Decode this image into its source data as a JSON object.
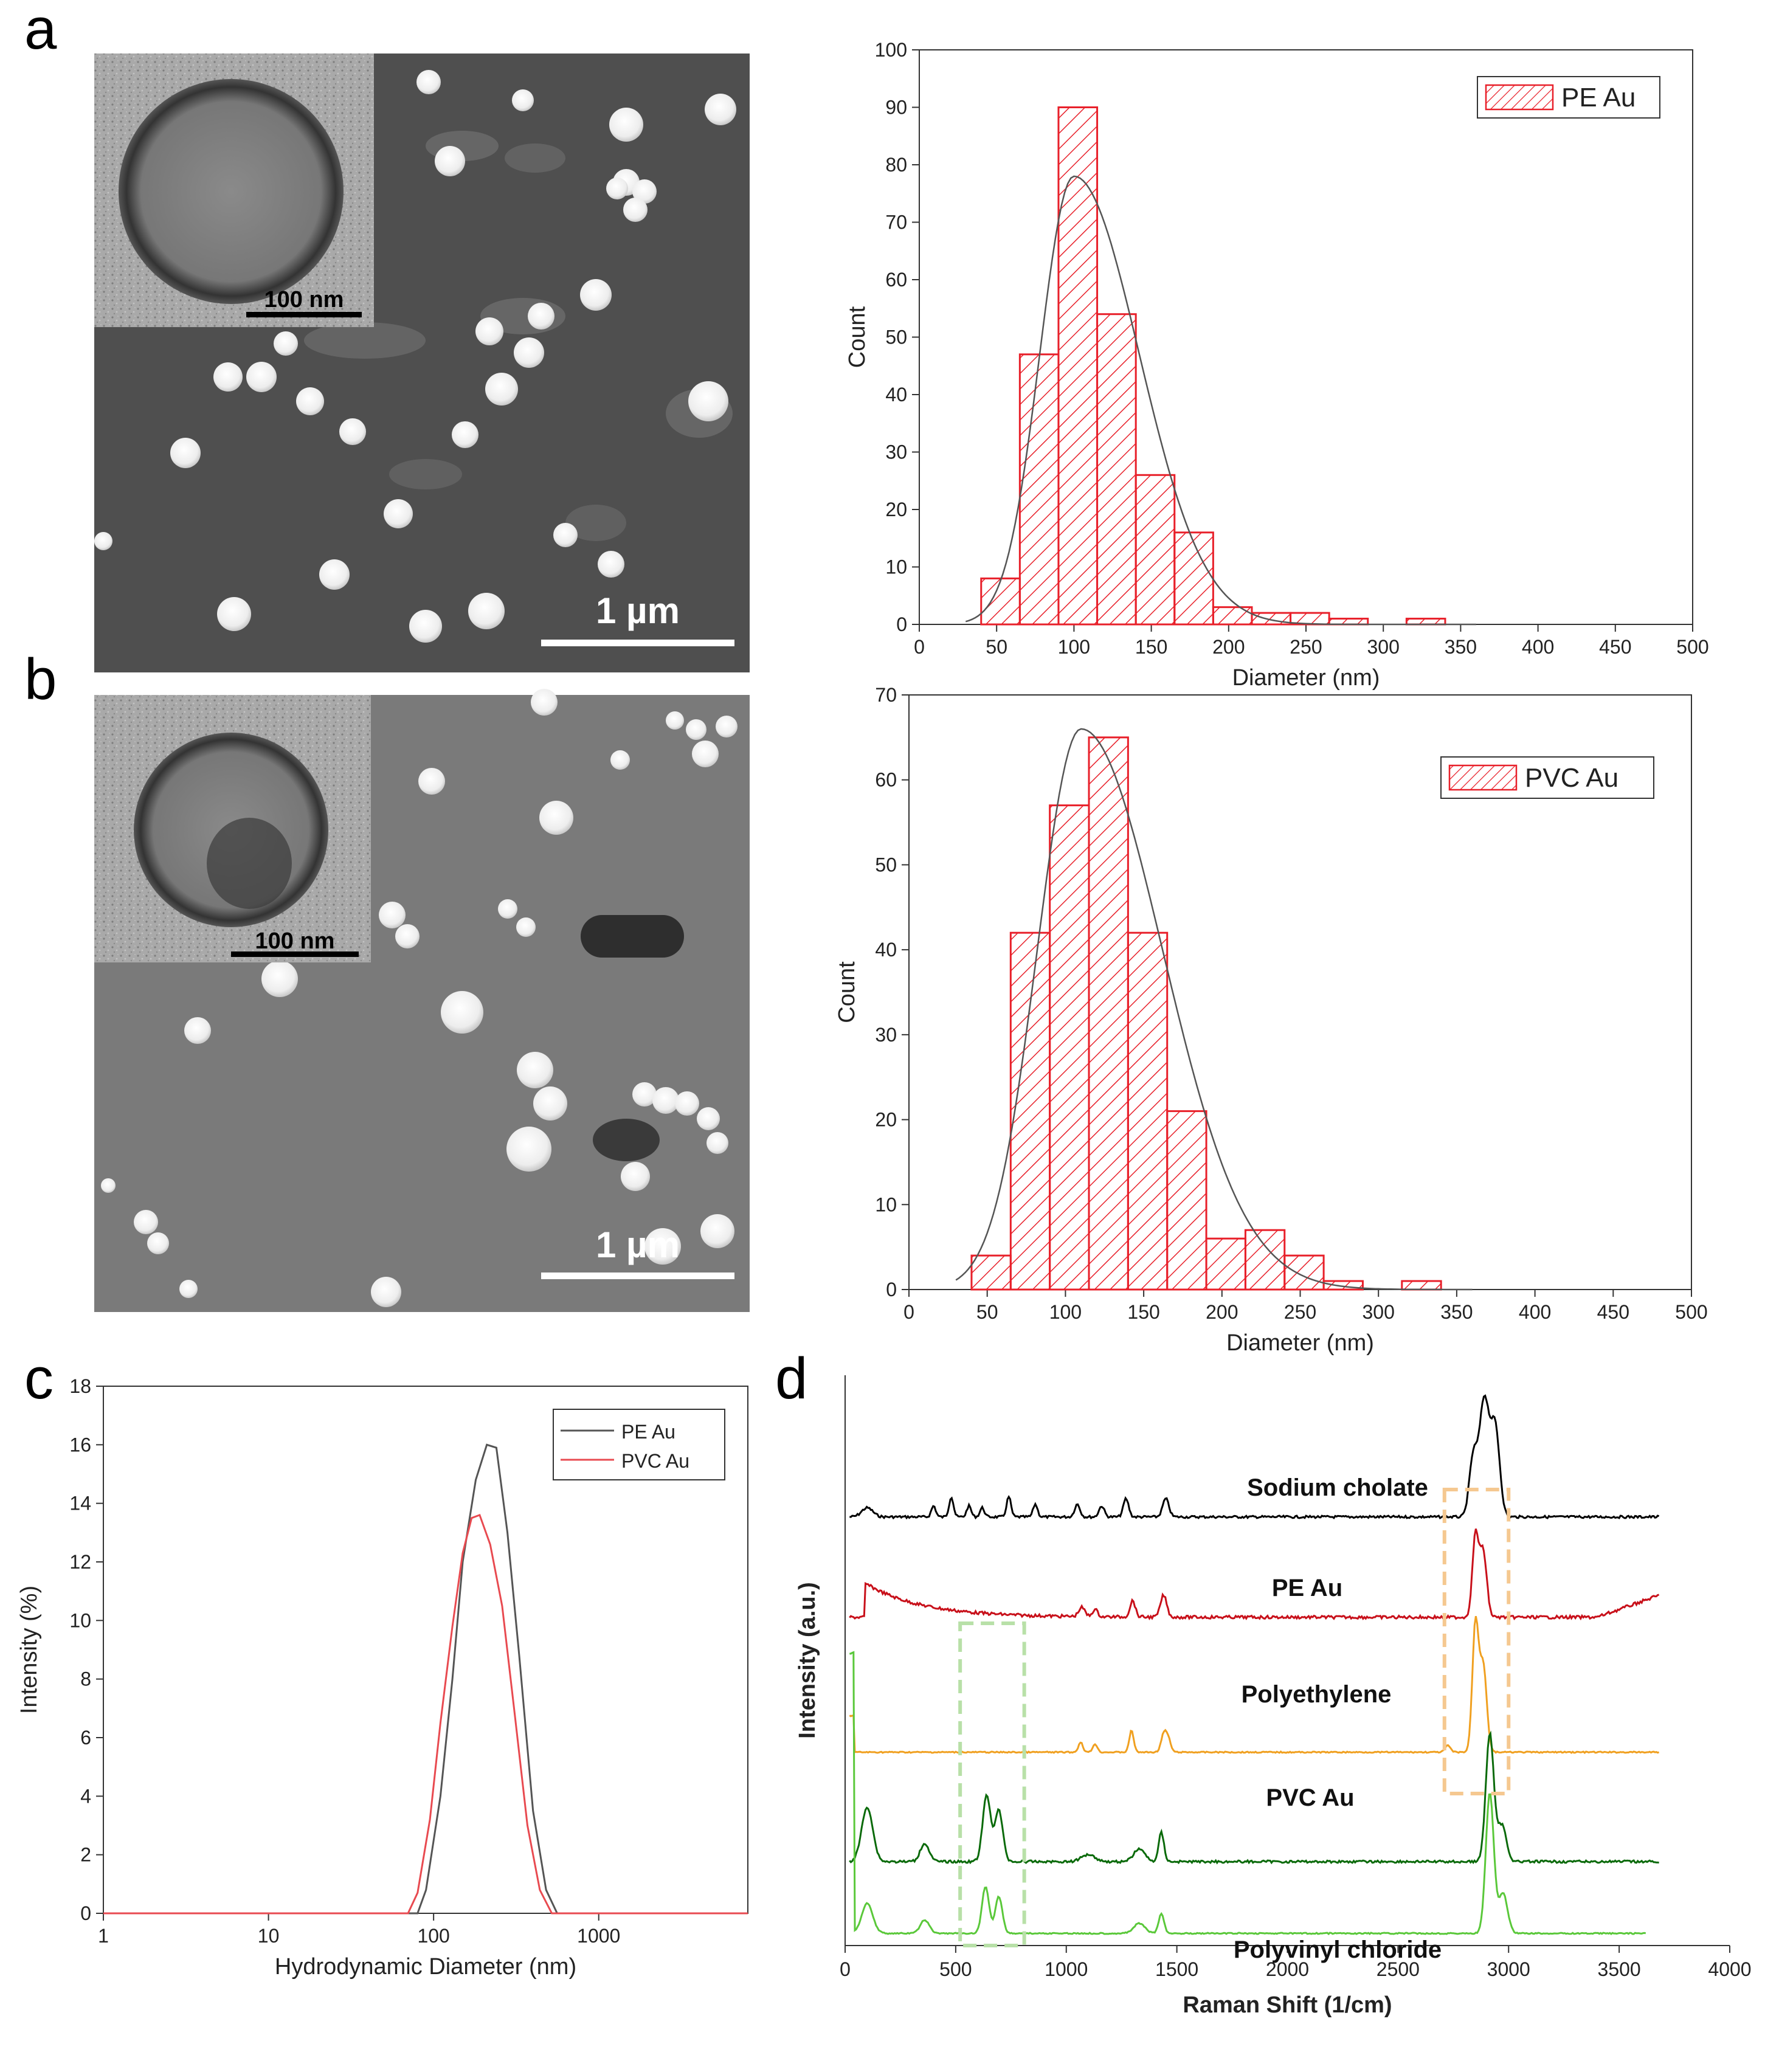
{
  "panel_letters": {
    "a": "a",
    "b": "b",
    "c": "c",
    "d": "d"
  },
  "micrographs": {
    "a": {
      "inset_scale": "100 nm",
      "main_scale": "1 µm"
    },
    "b": {
      "inset_scale": "100 nm",
      "main_scale": "1 µm"
    }
  },
  "colors": {
    "bar_edge": "#e8202a",
    "fit": "#555555",
    "black": "#000000",
    "red": "#c8101a",
    "orange": "#f0a020",
    "dark_green": "#0a6a0a",
    "light_green": "#5ac83a"
  },
  "chart_data": [
    {
      "id": "a",
      "type": "bar",
      "title": "",
      "xlabel": "Diameter (nm)",
      "ylabel": "Count",
      "xlim": [
        0,
        500
      ],
      "ylim": [
        0,
        100
      ],
      "xticks": [
        0,
        50,
        100,
        150,
        200,
        250,
        300,
        350,
        400,
        450,
        500
      ],
      "yticks": [
        0,
        10,
        20,
        30,
        40,
        50,
        60,
        70,
        80,
        90,
        100
      ],
      "legend": "PE Au",
      "bin_width": 25,
      "bin_starts": [
        40,
        65,
        90,
        115,
        140,
        165,
        190,
        215,
        240,
        265,
        290,
        315
      ],
      "values": [
        8,
        47,
        90,
        54,
        26,
        16,
        3,
        2,
        2,
        1,
        0,
        1
      ],
      "fit": {
        "peak_x": 100,
        "peak_y": 78,
        "sigma_left": 22,
        "sigma_right": 42
      }
    },
    {
      "id": "b",
      "type": "bar",
      "title": "",
      "xlabel": "Diameter (nm)",
      "ylabel": "Count",
      "xlim": [
        0,
        500
      ],
      "ylim": [
        0,
        70
      ],
      "xticks": [
        0,
        50,
        100,
        150,
        200,
        250,
        300,
        350,
        400,
        450,
        500
      ],
      "yticks": [
        0,
        10,
        20,
        30,
        40,
        50,
        60,
        70
      ],
      "legend": "PVC Au",
      "bin_width": 25,
      "bin_starts": [
        40,
        65,
        90,
        115,
        140,
        165,
        190,
        215,
        240,
        265,
        290,
        315
      ],
      "values": [
        4,
        42,
        57,
        65,
        42,
        21,
        6,
        7,
        4,
        1,
        0,
        1
      ],
      "fit": {
        "peak_x": 110,
        "peak_y": 66,
        "sigma_left": 28,
        "sigma_right": 52
      }
    },
    {
      "id": "c",
      "type": "line",
      "title": "",
      "xlabel": "Hydrodynamic Diameter (nm)",
      "ylabel": "Intensity (%)",
      "xscale": "log",
      "xlim": [
        1,
        8000
      ],
      "ylim": [
        0,
        18
      ],
      "xticks": [
        1,
        10,
        100,
        1000
      ],
      "xtick_labels": [
        "1",
        "10",
        "100",
        "1000"
      ],
      "yticks": [
        0,
        2,
        4,
        6,
        8,
        10,
        12,
        14,
        16,
        18
      ],
      "series": [
        {
          "name": "PE Au",
          "color": "#555555",
          "x": [
            1,
            60,
            80,
            90,
            110,
            130,
            150,
            180,
            210,
            240,
            280,
            330,
            400,
            480,
            560,
            700,
            8000
          ],
          "y": [
            0,
            0,
            0,
            0.8,
            4,
            8,
            12,
            14.8,
            16,
            15.9,
            13,
            8.8,
            3.5,
            0.8,
            0,
            0,
            0
          ]
        },
        {
          "name": "PVC Au",
          "color": "#e84a50",
          "x": [
            1,
            60,
            70,
            80,
            95,
            110,
            130,
            150,
            170,
            190,
            220,
            260,
            310,
            370,
            440,
            520,
            600,
            8000
          ],
          "y": [
            0,
            0,
            0,
            0.7,
            3.2,
            6.5,
            9.8,
            12.3,
            13.5,
            13.6,
            12.6,
            10.5,
            6.8,
            3,
            0.8,
            0,
            0,
            0
          ]
        }
      ]
    },
    {
      "id": "d",
      "type": "line",
      "title": "",
      "xlabel": "Raman Shift (1/cm)",
      "ylabel": "Intensity (a.u.)",
      "xlim": [
        0,
        4000
      ],
      "xticks": [
        0,
        500,
        1000,
        1500,
        2000,
        2500,
        3000,
        3500,
        4000
      ],
      "series": [
        {
          "name": "Sodium cholate",
          "color": "#000000"
        },
        {
          "name": "PE Au",
          "color": "#c8101a"
        },
        {
          "name": "Polyethylene",
          "color": "#f0a020"
        },
        {
          "name": "PVC Au",
          "color": "#0a6a0a"
        },
        {
          "name": "Polyvinyl chloride",
          "color": "#5ac83a"
        }
      ],
      "highlight_ranges": [
        {
          "x": [
            2710,
            3000
          ],
          "color": "#f5c890"
        },
        {
          "x": [
            520,
            810
          ],
          "color": "#b8e0a8"
        }
      ]
    }
  ]
}
